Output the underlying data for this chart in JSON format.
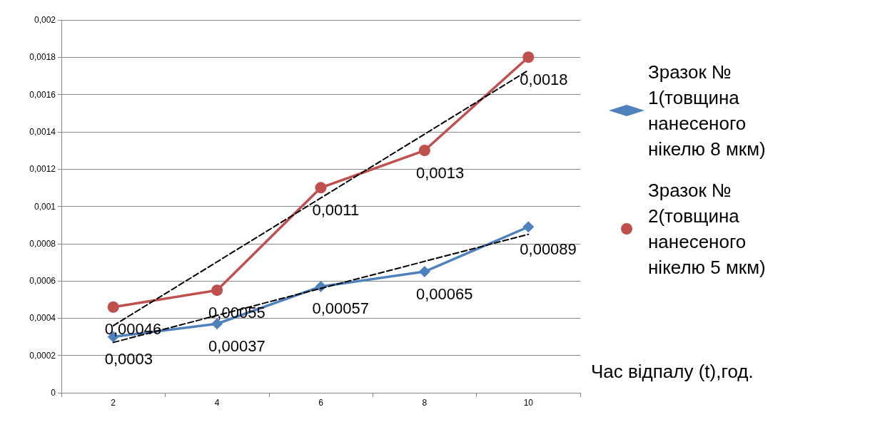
{
  "chart_data": {
    "type": "line",
    "xlabel": "Час відпалу (t),год.",
    "categories": [
      "2",
      "4",
      "6",
      "8",
      "10"
    ],
    "ylim": [
      0,
      0.002
    ],
    "yticks": [
      {
        "value": 0,
        "label": "0"
      },
      {
        "value": 0.0002,
        "label": "0,0002"
      },
      {
        "value": 0.0004,
        "label": "0,0004"
      },
      {
        "value": 0.0006,
        "label": "0,0006"
      },
      {
        "value": 0.0008,
        "label": "0,0008"
      },
      {
        "value": 0.001,
        "label": "0,001"
      },
      {
        "value": 0.0012,
        "label": "0,0012"
      },
      {
        "value": 0.0014,
        "label": "0,0014"
      },
      {
        "value": 0.0016,
        "label": "0,0016"
      },
      {
        "value": 0.0018,
        "label": "0,0018"
      },
      {
        "value": 0.002,
        "label": "0,002"
      }
    ],
    "grid": "y",
    "legend": "right",
    "line_style": "solid",
    "series": [
      {
        "name": "Зразок №1(товщина нанесеного нікелю 8 мкм)",
        "color": "#4f81bd",
        "marker": "diamond",
        "values": [
          0.0003,
          0.00037,
          0.00057,
          0.00065,
          0.00089
        ],
        "value_labels": [
          "0,0003",
          "0,00037",
          "0,00057",
          "0,00065",
          "0,00089"
        ]
      },
      {
        "name": "Зразок №2(товщина нанесеного нікелю 5 мкм)",
        "color": "#c0504d",
        "marker": "circle",
        "values": [
          0.00046,
          0.00055,
          0.0011,
          0.0013,
          0.0018
        ],
        "value_labels": [
          "0,00046",
          "0,00055",
          "0,0011",
          "0,0013",
          "0,0018"
        ]
      },
      {
        "type": "line",
        "color": "#000000",
        "marker": "none",
        "line_style": "dashed",
        "x": [
          "2",
          "10"
        ],
        "values": [
          0.00027,
          0.00085
        ]
      },
      {
        "type": "line",
        "color": "#000000",
        "marker": "none",
        "line_style": "dashed",
        "x": [
          "2",
          "10"
        ],
        "values": [
          0.00036,
          0.00173
        ]
      }
    ]
  }
}
